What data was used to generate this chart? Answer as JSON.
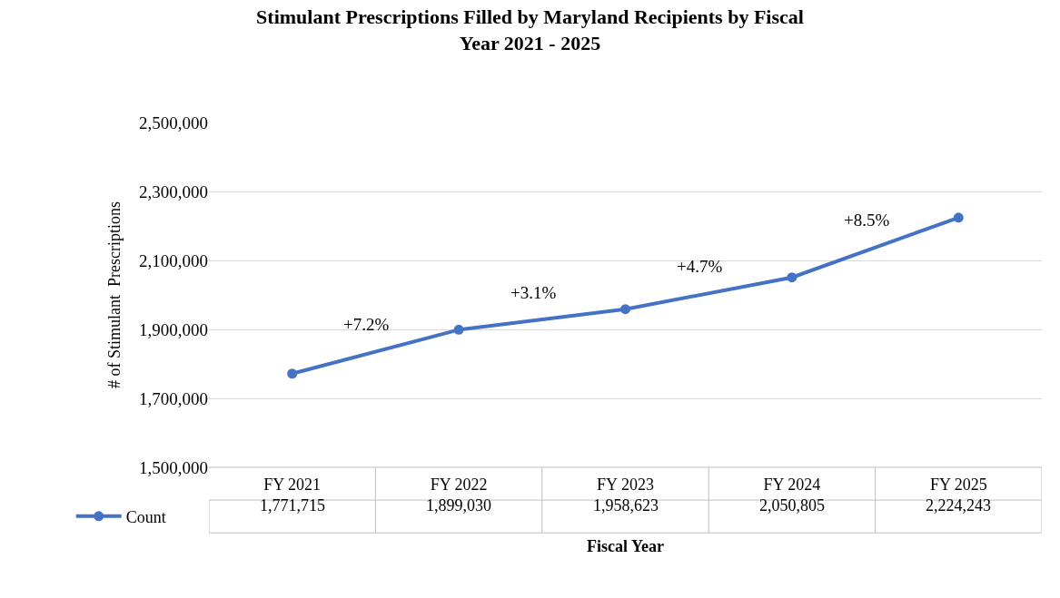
{
  "chart_data": {
    "type": "line",
    "title": "Stimulant Prescriptions Filled by Maryland Recipients by Fiscal Year 2021 - 2025",
    "xlabel": "Fiscal Year",
    "ylabel": "# of Stimulant  Prescriptions",
    "categories": [
      "FY 2021",
      "FY 2022",
      "FY 2023",
      "FY 2024",
      "FY 2025"
    ],
    "series": [
      {
        "name": "Count",
        "color": "#4472c4",
        "values": [
          1771715,
          1899030,
          1958623,
          2050805,
          2224243
        ],
        "value_labels": [
          "1,771,715",
          "1,899,030",
          "1,958,623",
          "2,050,805",
          "2,224,243"
        ]
      }
    ],
    "ylim": [
      1500000,
      2500000
    ],
    "yticks": [
      {
        "value": 1500000,
        "label": "1,500,000"
      },
      {
        "value": 1700000,
        "label": "1,700,000"
      },
      {
        "value": 1900000,
        "label": "1,900,000"
      },
      {
        "value": 2100000,
        "label": "2,100,000"
      },
      {
        "value": 2300000,
        "label": "2,300,000"
      },
      {
        "value": 2500000,
        "label": "2,500,000"
      }
    ],
    "annotations": [
      "+7.2%",
      "+3.1%",
      "+4.7%",
      "+8.5%"
    ],
    "grid": "y",
    "legend": "bottom left",
    "marker": "circle",
    "line_style": "solid"
  }
}
